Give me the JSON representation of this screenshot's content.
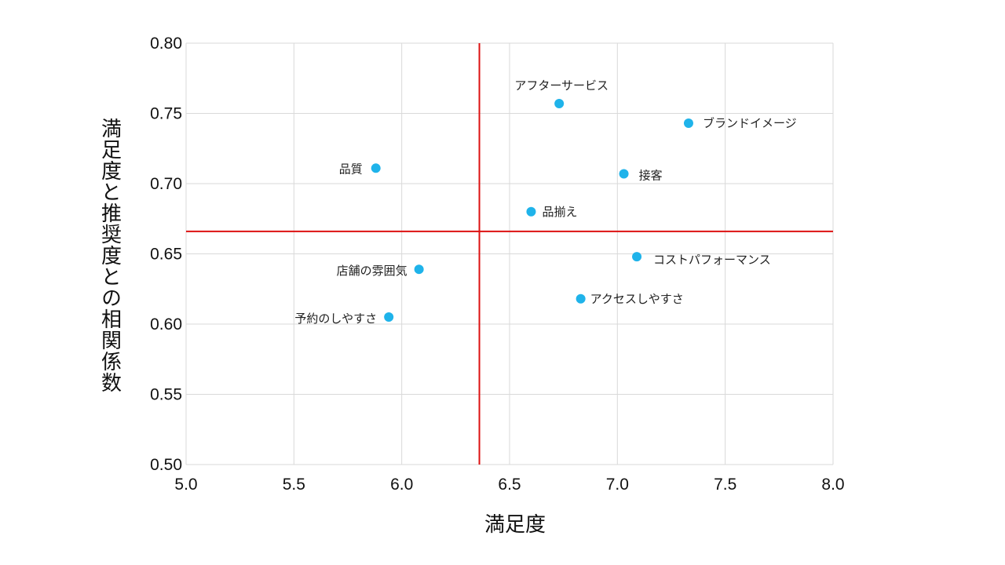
{
  "chart_data": {
    "type": "scatter",
    "title": "",
    "xlabel": "満足度",
    "ylabel": "満足度と推奨度との相関係数",
    "xlim": [
      5.0,
      8.0
    ],
    "ylim": [
      0.5,
      0.8
    ],
    "x_ticks": [
      "5.0",
      "5.5",
      "6.0",
      "6.5",
      "7.0",
      "7.5",
      "8.0"
    ],
    "y_ticks": [
      "0.80",
      "0.75",
      "0.70",
      "0.65",
      "0.60",
      "0.55",
      "0.50"
    ],
    "grid": true,
    "point_color": "#1fb3ea",
    "reference_lines": {
      "x": 6.36,
      "y": 0.666,
      "color": "#dd1111"
    },
    "points": [
      {
        "label": "アフターサービス",
        "x": 6.73,
        "y": 0.757
      },
      {
        "label": "ブランドイメージ",
        "x": 7.33,
        "y": 0.743
      },
      {
        "label": "品質",
        "x": 5.88,
        "y": 0.711
      },
      {
        "label": "接客",
        "x": 7.03,
        "y": 0.707
      },
      {
        "label": "品揃え",
        "x": 6.6,
        "y": 0.68
      },
      {
        "label": "コストパフォーマンス",
        "x": 7.09,
        "y": 0.648
      },
      {
        "label": "店舗の雰囲気",
        "x": 6.08,
        "y": 0.639
      },
      {
        "label": "アクセスしやすさ",
        "x": 6.83,
        "y": 0.618
      },
      {
        "label": "予約のしやすさ",
        "x": 5.94,
        "y": 0.605
      }
    ]
  }
}
